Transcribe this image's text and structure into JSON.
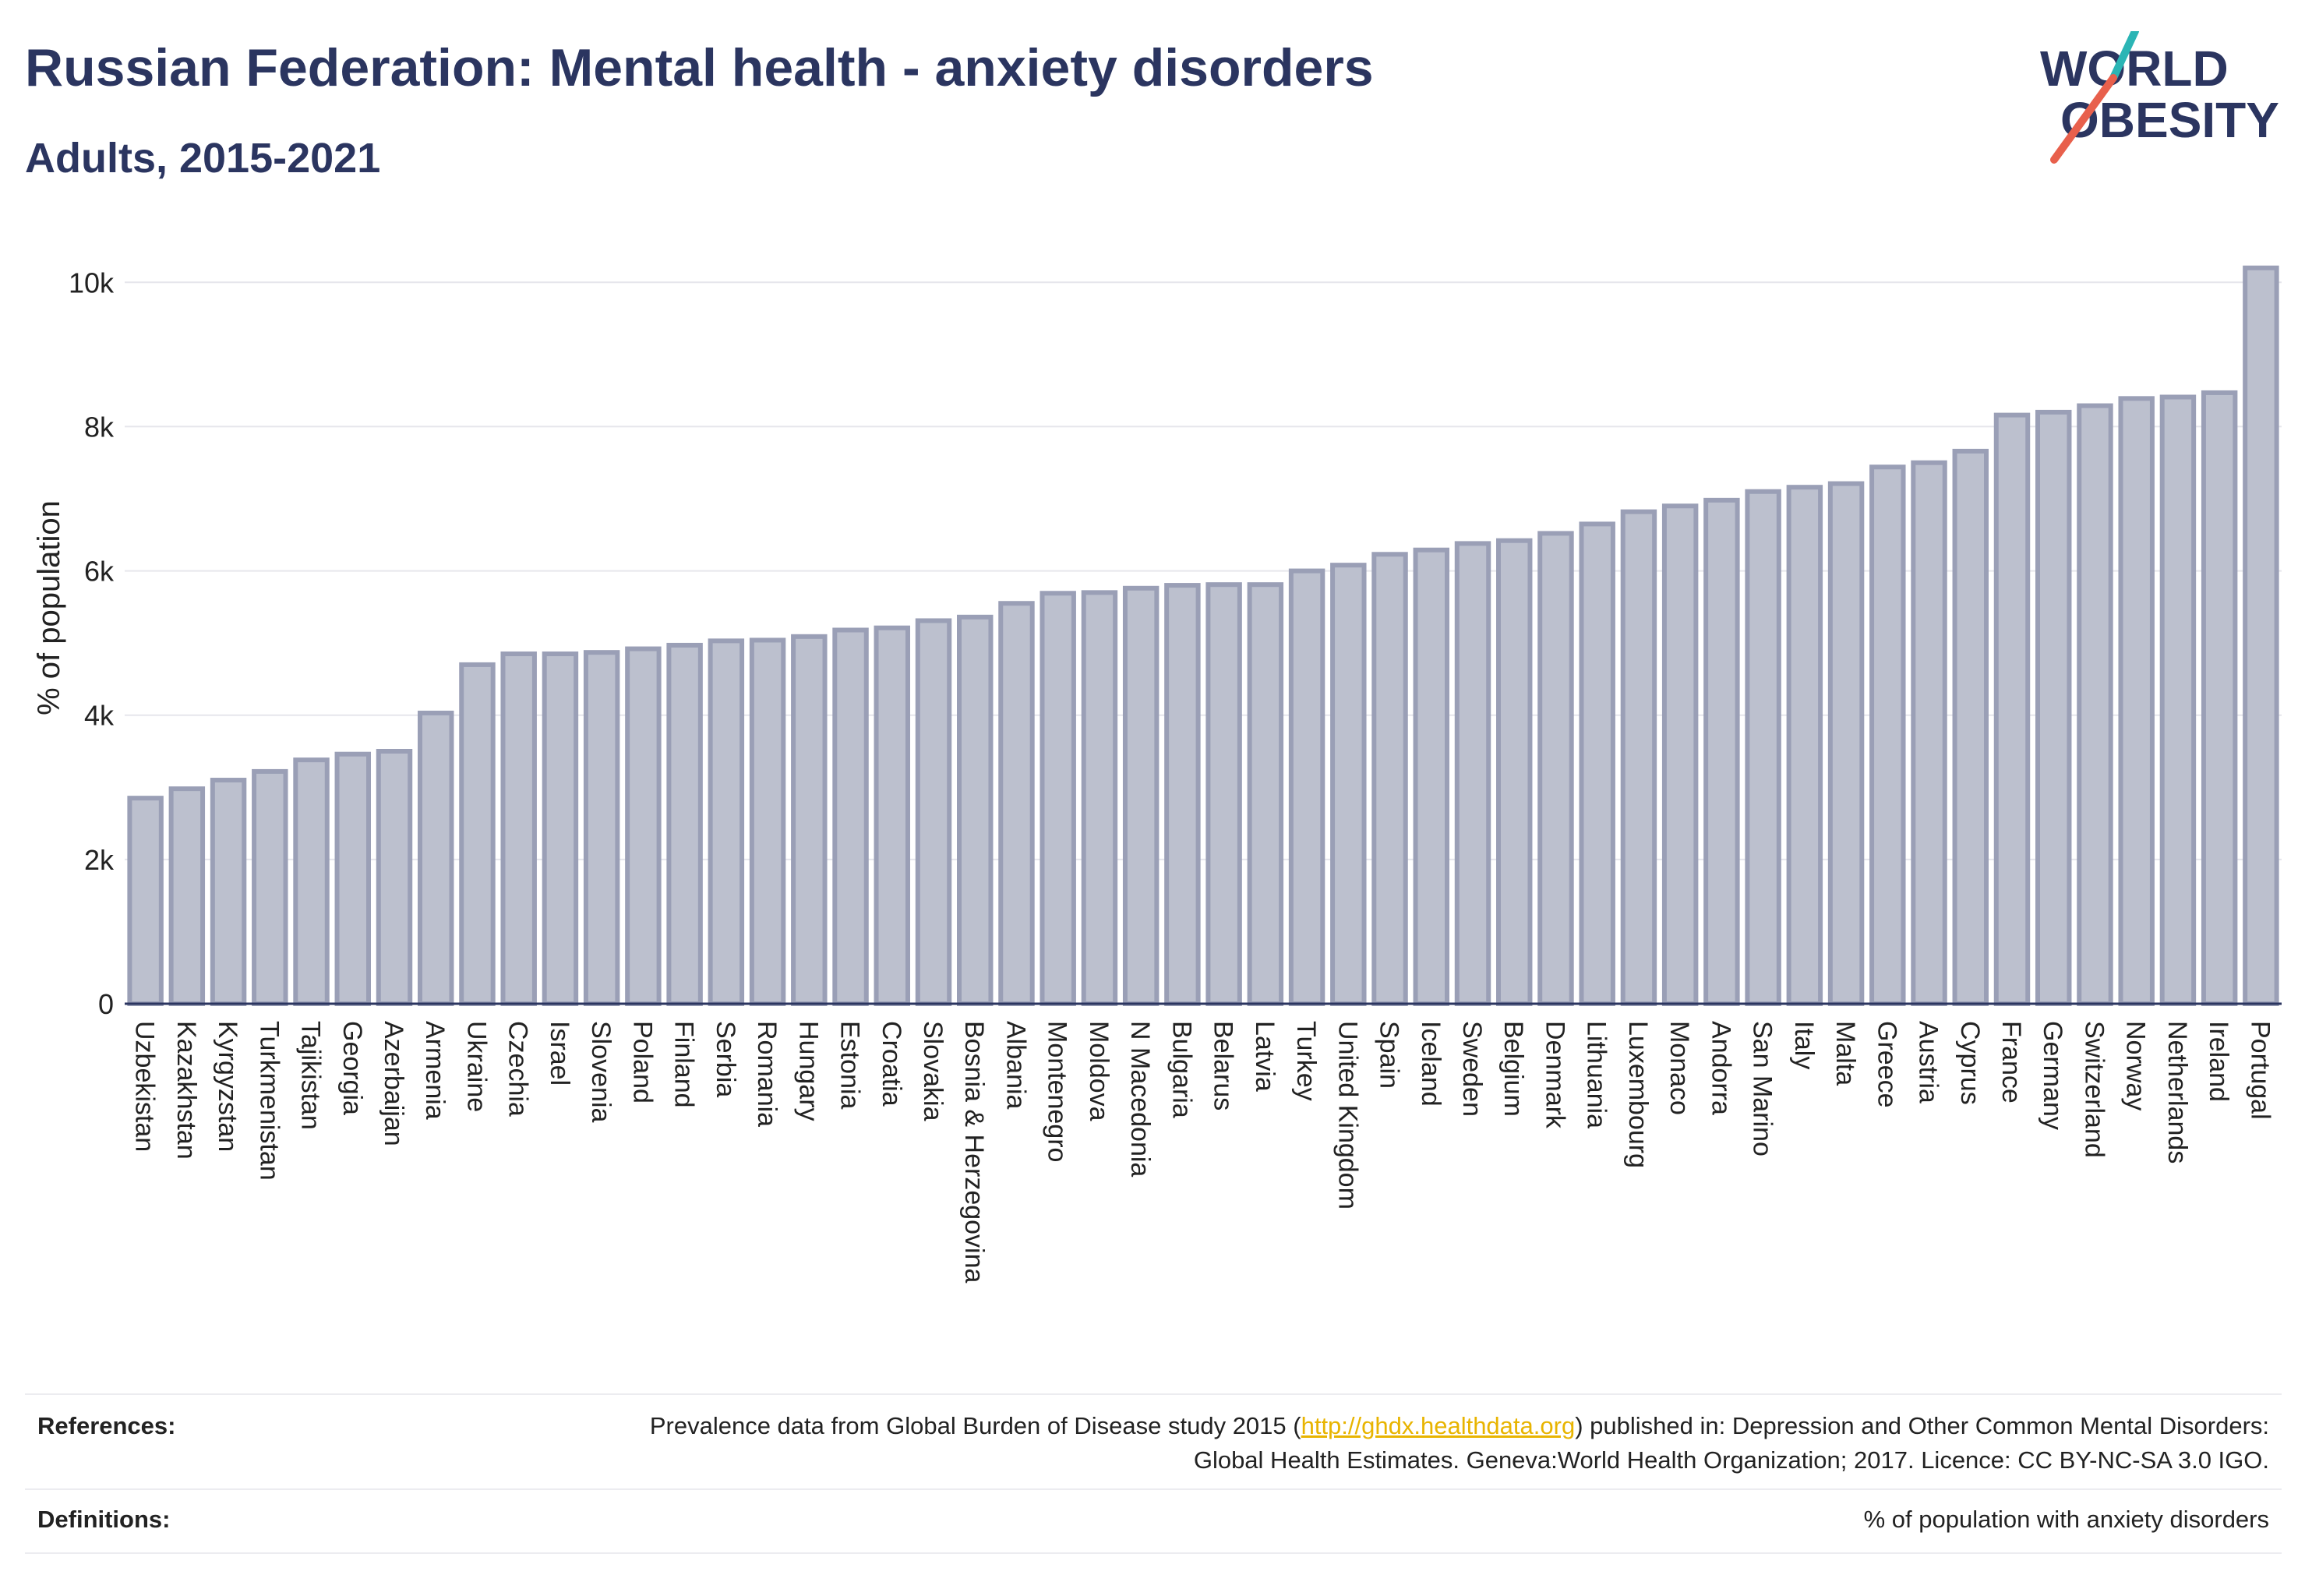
{
  "header": {
    "title": "Russian Federation: Mental health - anxiety disorders",
    "subtitle": "Adults, 2015-2021"
  },
  "logo": {
    "line1": "WORLD",
    "line2": "OBESITY",
    "colors": {
      "text": "#2b3560",
      "slash_top": "#2bb5b5",
      "slash_bottom": "#e8604c"
    }
  },
  "chart_data": {
    "type": "bar",
    "title": "",
    "xlabel": "",
    "ylabel": "% of population",
    "ylim": [
      0,
      10500
    ],
    "yticks": [
      0,
      2000,
      4000,
      6000,
      8000,
      10000
    ],
    "ytick_labels": [
      "0",
      "2k",
      "4k",
      "6k",
      "8k",
      "10k"
    ],
    "grid": true,
    "bar_fill": "#bcc0ce",
    "bar_stroke": "#9a9fb6",
    "categories": [
      "Uzbekistan",
      "Kazakhstan",
      "Kyrgyzstan",
      "Turkmenistan",
      "Tajikistan",
      "Georgia",
      "Azerbaijan",
      "Armenia",
      "Ukraine",
      "Czechia",
      "Israel",
      "Slovenia",
      "Poland",
      "Finland",
      "Serbia",
      "Romania",
      "Hungary",
      "Estonia",
      "Croatia",
      "Slovakia",
      "Bosnia & Herzegovina",
      "Albania",
      "Montenegro",
      "Moldova",
      "N Macedonia",
      "Bulgaria",
      "Belarus",
      "Latvia",
      "Turkey",
      "United Kingdom",
      "Spain",
      "Iceland",
      "Sweden",
      "Belgium",
      "Denmark",
      "Lithuania",
      "Luxembourg",
      "Monaco",
      "Andorra",
      "San Marino",
      "Italy",
      "Malta",
      "Greece",
      "Austria",
      "Cyprus",
      "France",
      "Germany",
      "Switzerland",
      "Norway",
      "Netherlands",
      "Ireland",
      "Portugal"
    ],
    "values": [
      2850,
      2980,
      3100,
      3220,
      3380,
      3460,
      3500,
      4030,
      4700,
      4850,
      4850,
      4870,
      4920,
      4970,
      5030,
      5040,
      5090,
      5180,
      5210,
      5310,
      5360,
      5550,
      5690,
      5700,
      5760,
      5800,
      5810,
      5810,
      6000,
      6080,
      6230,
      6290,
      6380,
      6420,
      6520,
      6650,
      6820,
      6900,
      6980,
      7100,
      7160,
      7210,
      7440,
      7500,
      7660,
      8160,
      8200,
      8290,
      8390,
      8410,
      8470,
      10200
    ]
  },
  "footer": {
    "references_label": "References:",
    "references_text_before": "Prevalence data from Global Burden of Disease study 2015 (",
    "references_link": "http://ghdx.healthdata.org",
    "references_text_after": ") published in: Depression and Other Common Mental Disorders: Global Health Estimates. Geneva:World Health Organization; 2017. Licence: CC BY-NC-SA 3.0 IGO.",
    "definitions_label": "Definitions:",
    "definitions_text": "% of population with anxiety disorders"
  }
}
